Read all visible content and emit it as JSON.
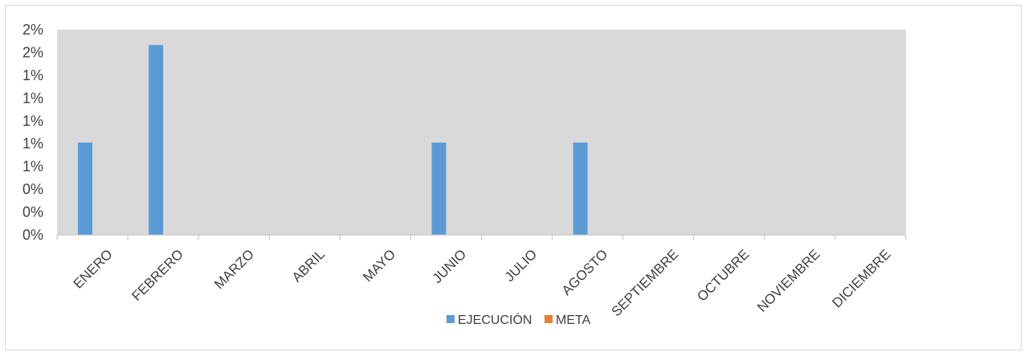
{
  "chart_data": {
    "type": "bar",
    "categories": [
      "ENERO",
      "FEBRERO",
      "MARZO",
      "ABRIL",
      "MAYO",
      "JUNIO",
      "JULIO",
      "AGOSTO",
      "SEPTIEMBRE",
      "OCTUBRE",
      "NOVIEMBRE",
      "DICIEMBRE"
    ],
    "series": [
      {
        "name": "EJECUCIÓN",
        "color": "#5B9BD5",
        "values": [
          0.9,
          1.85,
          0,
          0,
          0,
          0.9,
          0,
          0.9,
          0,
          0,
          0,
          0
        ]
      },
      {
        "name": "META",
        "color": "#ED7D31",
        "values": [
          0,
          0,
          0,
          0,
          0,
          0,
          0,
          0,
          0,
          0,
          0,
          0
        ]
      }
    ],
    "y_tick_labels": [
      "0%",
      "0%",
      "0%",
      "1%",
      "1%",
      "1%",
      "1%",
      "1%",
      "2%",
      "2%"
    ],
    "ylim": [
      0,
      2.0
    ],
    "plot_background": "#D9D9D9",
    "grid": false,
    "legend_position": "bottom"
  }
}
